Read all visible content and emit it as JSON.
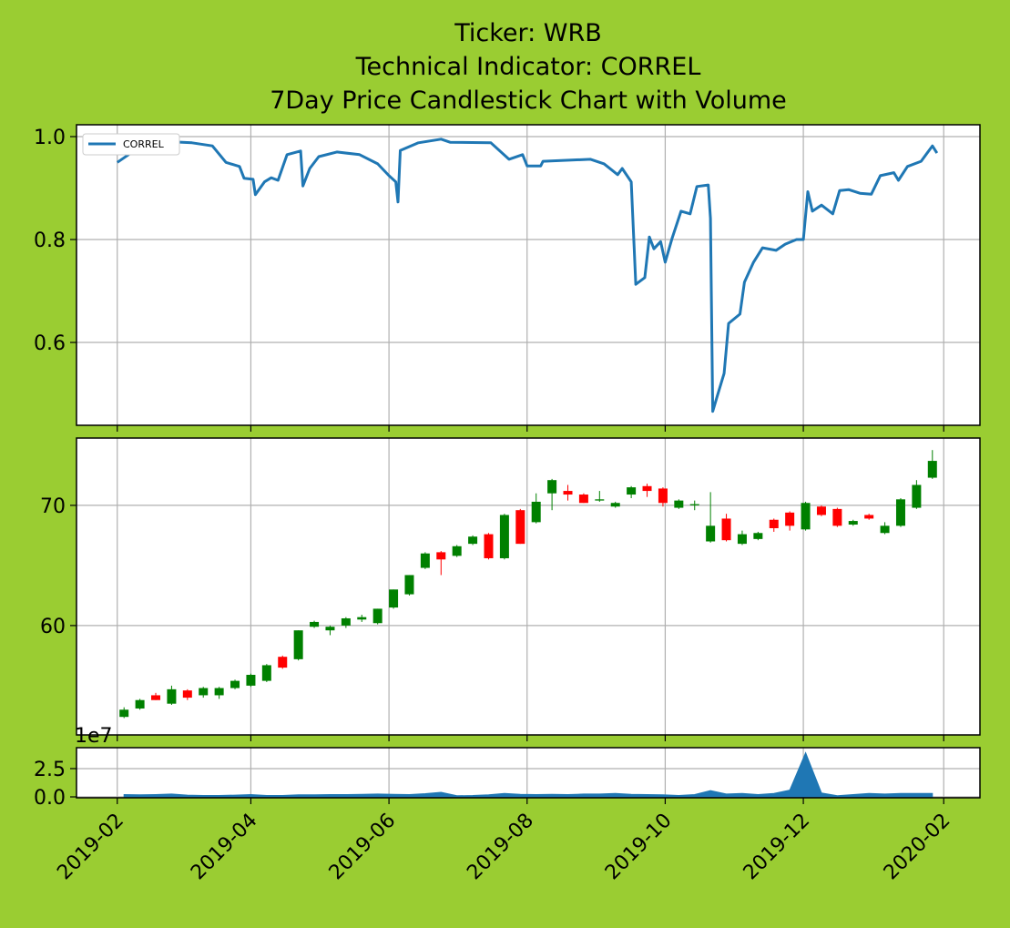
{
  "chart_data": [
    {
      "type": "line",
      "title": [
        "Ticker: WRB",
        "Technical Indicator: CORREL",
        "7Day Price Candlestick Chart with Volume"
      ],
      "x": [
        "2019-02-01",
        "2019-02-06",
        "2019-02-10",
        "2019-02-20",
        "2019-03-06",
        "2019-03-15",
        "2019-03-21",
        "2019-03-27",
        "2019-03-29",
        "2019-04-02",
        "2019-04-03",
        "2019-04-07",
        "2019-04-10",
        "2019-04-13",
        "2019-04-17",
        "2019-04-23",
        "2019-04-24",
        "2019-04-27",
        "2019-05-01",
        "2019-05-09",
        "2019-05-19",
        "2019-05-27",
        "2019-06-01",
        "2019-06-04",
        "2019-06-05",
        "2019-06-06",
        "2019-06-14",
        "2019-06-24",
        "2019-06-28",
        "2019-07-16",
        "2019-07-24",
        "2019-07-30",
        "2019-08-01",
        "2019-08-07",
        "2019-08-08",
        "2019-08-29",
        "2019-09-04",
        "2019-09-10",
        "2019-09-12",
        "2019-09-16",
        "2019-09-18",
        "2019-09-22",
        "2019-09-24",
        "2019-09-26",
        "2019-09-29",
        "2019-10-01",
        "2019-10-04",
        "2019-10-08",
        "2019-10-12",
        "2019-10-15",
        "2019-10-20",
        "2019-10-21",
        "2019-10-22",
        "2019-10-24",
        "2019-10-27",
        "2019-10-29",
        "2019-11-03",
        "2019-11-05",
        "2019-11-09",
        "2019-11-13",
        "2019-11-19",
        "2019-11-23",
        "2019-11-28",
        "2019-12-01",
        "2019-12-03",
        "2019-12-05",
        "2019-12-09",
        "2019-12-14",
        "2019-12-17",
        "2019-12-21",
        "2019-12-26",
        "2019-12-31",
        "2020-01-04",
        "2020-01-10",
        "2020-01-12",
        "2020-01-16",
        "2020-01-22",
        "2020-01-27",
        "2020-01-29"
      ],
      "series": [
        {
          "name": "CORREL",
          "color": "#1f77b4",
          "values": [
            0.95,
            0.965,
            0.989,
            0.991,
            0.988,
            0.982,
            0.95,
            0.942,
            0.919,
            0.917,
            0.887,
            0.912,
            0.92,
            0.915,
            0.965,
            0.972,
            0.904,
            0.938,
            0.961,
            0.97,
            0.965,
            0.947,
            0.924,
            0.912,
            0.873,
            0.973,
            0.988,
            0.995,
            0.989,
            0.988,
            0.956,
            0.965,
            0.943,
            0.943,
            0.952,
            0.956,
            0.947,
            0.926,
            0.938,
            0.912,
            0.713,
            0.726,
            0.805,
            0.782,
            0.796,
            0.756,
            0.802,
            0.855,
            0.85,
            0.903,
            0.906,
            0.841,
            0.466,
            0.496,
            0.54,
            0.637,
            0.655,
            0.717,
            0.756,
            0.784,
            0.779,
            0.791,
            0.8,
            0.8,
            0.893,
            0.855,
            0.867,
            0.85,
            0.895,
            0.897,
            0.89,
            0.888,
            0.924,
            0.93,
            0.915,
            0.942,
            0.952,
            0.982,
            0.968
          ]
        }
      ],
      "xlim": [
        "2019-01-14",
        "2020-02-17"
      ],
      "xticks": [
        "2019-02-01",
        "2019-04-01",
        "2019-06-01",
        "2019-08-01",
        "2019-10-01",
        "2019-12-01",
        "2020-02-01"
      ],
      "ylim": [
        0.439,
        1.023
      ],
      "yticks": [
        {
          "value": 1,
          "label": "1.0"
        },
        0.8,
        0.6
      ],
      "grid": true,
      "legend": "upper left"
    },
    {
      "type": "candlestick",
      "categories": [
        "2019-02-04",
        "2019-02-11",
        "2019-02-18",
        "2019-02-25",
        "2019-03-04",
        "2019-03-11",
        "2019-03-18",
        "2019-03-25",
        "2019-04-01",
        "2019-04-08",
        "2019-04-15",
        "2019-04-22",
        "2019-04-29",
        "2019-05-06",
        "2019-05-13",
        "2019-05-20",
        "2019-05-27",
        "2019-06-03",
        "2019-06-10",
        "2019-06-17",
        "2019-06-24",
        "2019-07-01",
        "2019-07-08",
        "2019-07-15",
        "2019-07-22",
        "2019-07-29",
        "2019-08-05",
        "2019-08-12",
        "2019-08-19",
        "2019-08-26",
        "2019-09-02",
        "2019-09-09",
        "2019-09-16",
        "2019-09-23",
        "2019-09-30",
        "2019-10-07",
        "2019-10-14",
        "2019-10-21",
        "2019-10-28",
        "2019-11-04",
        "2019-11-11",
        "2019-11-18",
        "2019-11-25",
        "2019-12-02",
        "2019-12-09",
        "2019-12-16",
        "2019-12-23",
        "2019-12-30",
        "2020-01-06",
        "2020-01-13",
        "2020-01-20",
        "2020-01-27"
      ],
      "open": [
        52.4,
        53.1,
        54.2,
        53.5,
        54.6,
        54.2,
        54.2,
        54.8,
        55.0,
        55.4,
        57.4,
        57.2,
        59.9,
        59.6,
        60.0,
        60.5,
        60.2,
        61.5,
        62.6,
        64.8,
        66.1,
        65.8,
        66.8,
        67.6,
        65.6,
        69.6,
        68.6,
        71.0,
        71.2,
        70.9,
        70.4,
        69.9,
        70.9,
        71.6,
        71.4,
        69.8,
        70.0,
        67.0,
        68.9,
        66.8,
        67.2,
        68.8,
        69.4,
        68.0,
        69.9,
        69.7,
        68.4,
        69.2,
        67.7,
        68.3,
        69.8,
        72.3
      ],
      "high": [
        53.2,
        53.9,
        54.4,
        55.0,
        54.7,
        54.9,
        54.9,
        55.5,
        56.0,
        56.8,
        57.5,
        59.6,
        60.4,
        60.0,
        60.7,
        60.9,
        61.4,
        63.0,
        64.2,
        66.1,
        66.2,
        66.7,
        67.5,
        67.7,
        69.3,
        69.7,
        71.0,
        72.2,
        71.7,
        71.0,
        71.2,
        70.3,
        71.6,
        71.8,
        71.5,
        70.5,
        70.4,
        71.1,
        69.3,
        67.9,
        67.8,
        68.9,
        69.5,
        70.3,
        70.0,
        69.8,
        68.8,
        69.3,
        68.6,
        70.6,
        72.1,
        74.6
      ],
      "low": [
        52.3,
        53.0,
        53.8,
        53.4,
        53.8,
        54.0,
        53.9,
        54.7,
        54.9,
        55.3,
        56.4,
        57.1,
        59.8,
        59.2,
        59.8,
        60.3,
        60.1,
        61.4,
        62.5,
        64.7,
        64.2,
        65.7,
        66.7,
        65.5,
        65.5,
        66.8,
        68.5,
        69.6,
        70.4,
        70.2,
        70.3,
        69.8,
        70.6,
        70.7,
        69.9,
        69.7,
        69.6,
        66.9,
        67.0,
        66.7,
        67.1,
        67.8,
        67.9,
        67.9,
        69.1,
        68.2,
        68.3,
        68.8,
        67.6,
        68.2,
        69.7,
        72.2
      ],
      "close": [
        53.0,
        53.8,
        53.8,
        54.7,
        54.0,
        54.8,
        54.8,
        55.4,
        55.9,
        56.7,
        56.5,
        59.6,
        60.3,
        59.9,
        60.6,
        60.7,
        61.4,
        63.0,
        64.2,
        66.0,
        65.5,
        66.6,
        67.4,
        65.6,
        69.2,
        66.8,
        70.3,
        72.1,
        70.9,
        70.2,
        70.5,
        70.2,
        71.5,
        71.2,
        70.2,
        70.4,
        70.1,
        68.3,
        67.1,
        67.6,
        67.7,
        68.1,
        68.3,
        70.2,
        69.2,
        68.3,
        68.7,
        68.9,
        68.3,
        70.5,
        71.7,
        73.7
      ],
      "up_color": "#008000",
      "down_color": "#ff0000",
      "xlim": [
        "2019-01-14",
        "2020-02-17"
      ],
      "xticks": [
        "2019-02-01",
        "2019-04-01",
        "2019-06-01",
        "2019-08-01",
        "2019-10-01",
        "2019-12-01",
        "2020-02-01"
      ],
      "ylim": [
        50.9,
        75.6
      ],
      "yticks": [
        70,
        60
      ],
      "grid": true
    },
    {
      "type": "area",
      "x": [
        "2019-02-04",
        "2019-02-11",
        "2019-02-18",
        "2019-02-25",
        "2019-03-04",
        "2019-03-11",
        "2019-03-18",
        "2019-03-25",
        "2019-04-01",
        "2019-04-08",
        "2019-04-15",
        "2019-04-22",
        "2019-04-29",
        "2019-05-06",
        "2019-05-13",
        "2019-05-20",
        "2019-05-27",
        "2019-06-03",
        "2019-06-10",
        "2019-06-17",
        "2019-06-24",
        "2019-07-01",
        "2019-07-08",
        "2019-07-15",
        "2019-07-22",
        "2019-07-29",
        "2019-08-05",
        "2019-08-12",
        "2019-08-19",
        "2019-08-26",
        "2019-09-02",
        "2019-09-09",
        "2019-09-16",
        "2019-09-23",
        "2019-09-30",
        "2019-10-07",
        "2019-10-14",
        "2019-10-21",
        "2019-10-28",
        "2019-11-04",
        "2019-11-11",
        "2019-11-18",
        "2019-11-25",
        "2019-12-02",
        "2019-12-09",
        "2019-12-16",
        "2019-12-23",
        "2019-12-30",
        "2020-01-06",
        "2020-01-13",
        "2020-01-20",
        "2020-01-27"
      ],
      "values": [
        0.2,
        0.18,
        0.2,
        0.25,
        0.15,
        0.12,
        0.12,
        0.15,
        0.2,
        0.12,
        0.12,
        0.18,
        0.18,
        0.2,
        0.2,
        0.22,
        0.25,
        0.22,
        0.2,
        0.28,
        0.4,
        0.1,
        0.12,
        0.18,
        0.3,
        0.22,
        0.2,
        0.22,
        0.2,
        0.25,
        0.25,
        0.3,
        0.22,
        0.2,
        0.18,
        0.12,
        0.2,
        0.55,
        0.25,
        0.3,
        0.2,
        0.3,
        0.6,
        3.9,
        0.35,
        0.1,
        0.2,
        0.3,
        0.25,
        0.3,
        0.3,
        0.3
      ],
      "color": "#1f77b4",
      "offset_label": "1e7",
      "xlim": [
        "2019-01-14",
        "2020-02-17"
      ],
      "xticks": [
        {
          "value": "2019-02-01",
          "label": "2019-02"
        },
        {
          "value": "2019-04-01",
          "label": "2019-04"
        },
        {
          "value": "2019-06-01",
          "label": "2019-06"
        },
        {
          "value": "2019-08-01",
          "label": "2019-08"
        },
        {
          "value": "2019-10-01",
          "label": "2019-10"
        },
        {
          "value": "2019-12-01",
          "label": "2019-12"
        },
        {
          "value": "2020-02-01",
          "label": "2020-02"
        }
      ],
      "ylim": [
        -0.08,
        4.35
      ],
      "yticks": [
        2.5,
        {
          "value": 0,
          "label": "0.0"
        }
      ],
      "grid": true
    }
  ]
}
